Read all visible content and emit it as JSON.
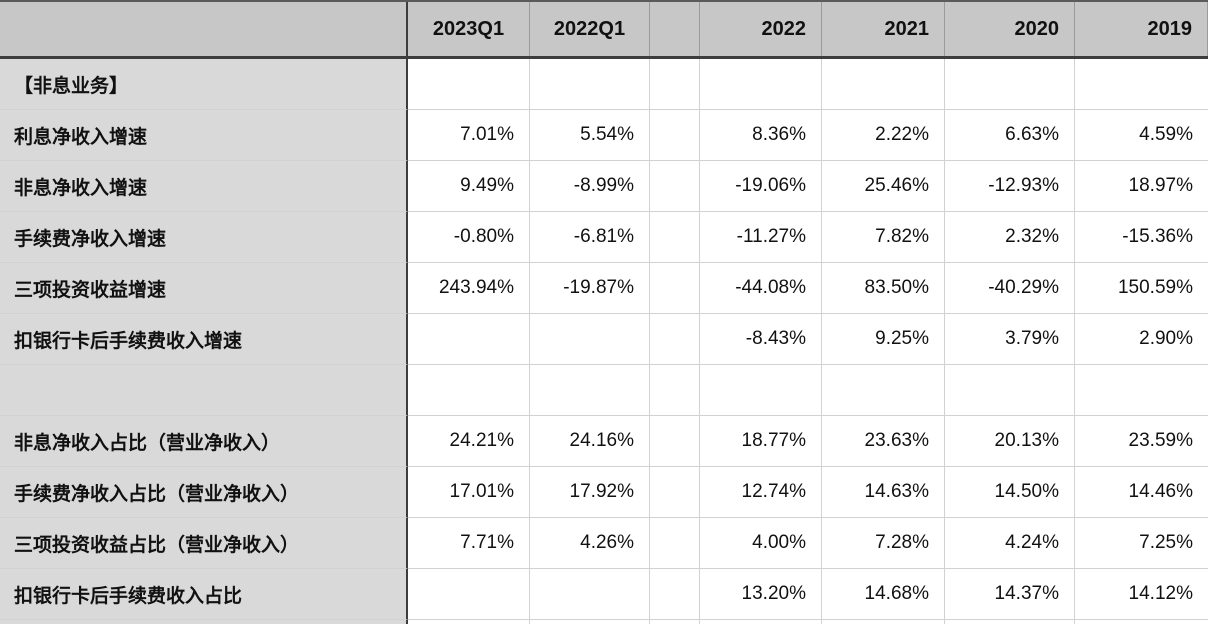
{
  "table": {
    "columns": [
      "",
      "2023Q1",
      "2022Q1",
      "",
      "2022",
      "2021",
      "2020",
      "2019"
    ],
    "rows": [
      {
        "label": "【非息业务】",
        "values": [
          "",
          "",
          "",
          "",
          "",
          "",
          ""
        ]
      },
      {
        "label": "利息净收入增速",
        "values": [
          "7.01%",
          "5.54%",
          "",
          "8.36%",
          "2.22%",
          "6.63%",
          "4.59%"
        ]
      },
      {
        "label": "非息净收入增速",
        "values": [
          "9.49%",
          "-8.99%",
          "",
          "-19.06%",
          "25.46%",
          "-12.93%",
          "18.97%"
        ]
      },
      {
        "label": "手续费净收入增速",
        "values": [
          "-0.80%",
          "-6.81%",
          "",
          "-11.27%",
          "7.82%",
          "2.32%",
          "-15.36%"
        ]
      },
      {
        "label": "三项投资收益增速",
        "values": [
          "243.94%",
          "-19.87%",
          "",
          "-44.08%",
          "83.50%",
          "-40.29%",
          "150.59%"
        ]
      },
      {
        "label": "扣银行卡后手续费收入增速",
        "values": [
          "",
          "",
          "",
          "-8.43%",
          "9.25%",
          "3.79%",
          "2.90%"
        ]
      },
      {
        "label": "",
        "values": [
          "",
          "",
          "",
          "",
          "",
          "",
          ""
        ]
      },
      {
        "label": "非息净收入占比（营业净收入）",
        "values": [
          "24.21%",
          "24.16%",
          "",
          "18.77%",
          "23.63%",
          "20.13%",
          "23.59%"
        ]
      },
      {
        "label": "手续费净收入占比（营业净收入）",
        "values": [
          "17.01%",
          "17.92%",
          "",
          "12.74%",
          "14.63%",
          "14.50%",
          "14.46%"
        ]
      },
      {
        "label": "三项投资收益占比（营业净收入）",
        "values": [
          "7.71%",
          "4.26%",
          "",
          "4.00%",
          "7.28%",
          "4.24%",
          "7.25%"
        ]
      },
      {
        "label": "扣银行卡后手续费收入占比",
        "values": [
          "",
          "",
          "",
          "13.20%",
          "14.68%",
          "14.37%",
          "14.12%"
        ]
      }
    ],
    "colors": {
      "header_bg": "#c7c7c7",
      "label_col_bg": "#d9d9d9",
      "grid_line": "#d2d2d2",
      "section_border": "#3d3d3d"
    }
  }
}
